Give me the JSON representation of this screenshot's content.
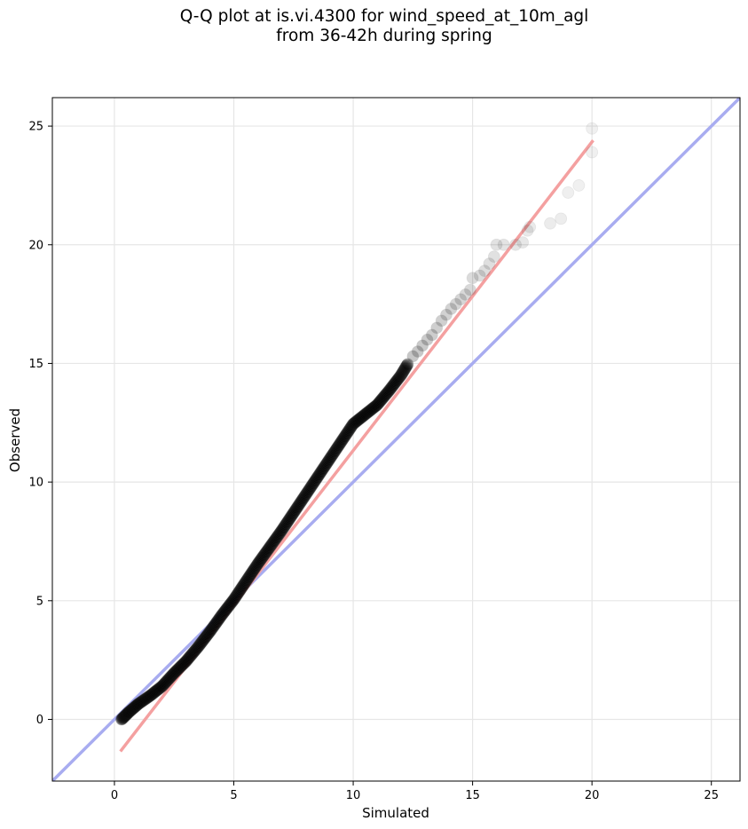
{
  "chart_data": {
    "type": "scatter",
    "title_line1": "Q-Q plot at is.vi.4300 for wind_speed_at_10m_agl",
    "title_line2": "from 36-42h during spring",
    "xlabel": "Simulated",
    "ylabel": "Observed",
    "xlim": [
      -2.6,
      26.2
    ],
    "ylim": [
      -2.6,
      26.2
    ],
    "xticks": [
      0,
      5,
      10,
      15,
      20,
      25
    ],
    "yticks": [
      0,
      5,
      10,
      15,
      20,
      25
    ],
    "grid": true,
    "colors": {
      "points": "#000000",
      "fit_line": "#f4a0a0",
      "identity_line": "#a8acf0"
    },
    "fit_line": {
      "x": [
        0.25,
        20.05
      ],
      "y": [
        -1.35,
        24.4
      ]
    },
    "identity_line": {
      "x": [
        -2.6,
        26.2
      ],
      "y": [
        -2.6,
        26.2
      ]
    },
    "curve_points": {
      "x": [
        0.3,
        0.6,
        1.0,
        1.5,
        2.0,
        2.5,
        3.0,
        3.5,
        4.0,
        4.5,
        5.0,
        5.5,
        6.0,
        6.5,
        7.0,
        7.5,
        8.0,
        8.5,
        9.0,
        9.5,
        10.0,
        10.5,
        11.0,
        11.5,
        12.0,
        12.3
      ],
      "y": [
        0.0,
        0.3,
        0.65,
        1.0,
        1.4,
        1.95,
        2.45,
        3.05,
        3.7,
        4.4,
        5.05,
        5.8,
        6.55,
        7.25,
        7.95,
        8.7,
        9.45,
        10.2,
        10.95,
        11.7,
        12.45,
        12.85,
        13.25,
        13.85,
        14.5,
        15.0
      ]
    },
    "tail_points": [
      {
        "x": 12.5,
        "y": 15.3
      },
      {
        "x": 12.7,
        "y": 15.5
      },
      {
        "x": 12.9,
        "y": 15.75
      },
      {
        "x": 13.1,
        "y": 16.0
      },
      {
        "x": 13.3,
        "y": 16.2
      },
      {
        "x": 13.5,
        "y": 16.5
      },
      {
        "x": 13.7,
        "y": 16.8
      },
      {
        "x": 13.9,
        "y": 17.05
      },
      {
        "x": 14.1,
        "y": 17.3
      },
      {
        "x": 14.3,
        "y": 17.5
      },
      {
        "x": 14.5,
        "y": 17.7
      },
      {
        "x": 14.7,
        "y": 17.9
      },
      {
        "x": 14.9,
        "y": 18.1
      },
      {
        "x": 15.0,
        "y": 18.6
      },
      {
        "x": 15.3,
        "y": 18.7
      },
      {
        "x": 15.5,
        "y": 18.9
      },
      {
        "x": 15.7,
        "y": 19.2
      },
      {
        "x": 15.9,
        "y": 19.5
      },
      {
        "x": 16.0,
        "y": 20.0
      },
      {
        "x": 16.3,
        "y": 20.0
      },
      {
        "x": 16.8,
        "y": 20.0
      },
      {
        "x": 17.1,
        "y": 20.1
      },
      {
        "x": 17.3,
        "y": 20.6
      },
      {
        "x": 17.4,
        "y": 20.75
      },
      {
        "x": 18.25,
        "y": 20.9
      },
      {
        "x": 18.7,
        "y": 21.1
      },
      {
        "x": 19.0,
        "y": 22.2
      },
      {
        "x": 19.45,
        "y": 22.5
      },
      {
        "x": 20.0,
        "y": 23.9
      },
      {
        "x": 20.0,
        "y": 24.9
      }
    ]
  }
}
